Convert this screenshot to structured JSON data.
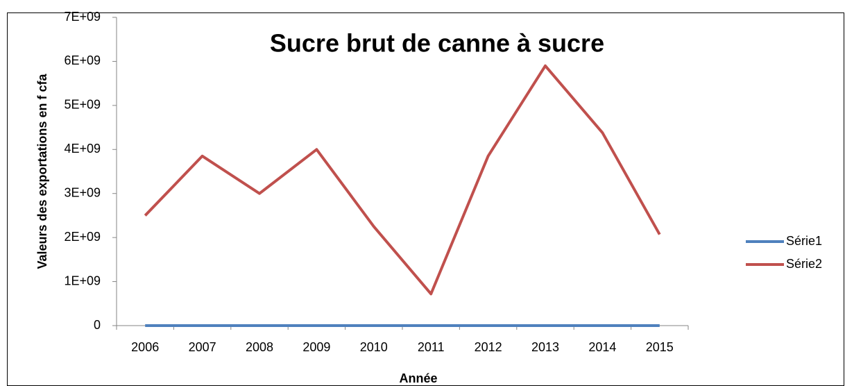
{
  "chart_data": {
    "type": "line",
    "title": "Sucre brut de canne à sucre",
    "x_label": "Année",
    "y_label": "Valeurs des exportations en f cfa",
    "categories": [
      "2006",
      "2007",
      "2008",
      "2009",
      "2010",
      "2011",
      "2012",
      "2013",
      "2014",
      "2015"
    ],
    "series": [
      {
        "name": "Série1",
        "color": "#4f81bd",
        "values": [
          0,
          0,
          0,
          0,
          0,
          0,
          0,
          0,
          0,
          0
        ]
      },
      {
        "name": "Série2",
        "color": "#c0504d",
        "values": [
          2500000000,
          3850000000,
          3000000000,
          4000000000,
          2250000000,
          720000000,
          3850000000,
          5900000000,
          4380000000,
          2070000000
        ]
      }
    ],
    "ylim": [
      0,
      7000000000
    ],
    "yticks": [
      0,
      {
        "value": 1000000000,
        "label": "1E+09"
      },
      {
        "value": 2000000000,
        "label": "2E+09"
      },
      {
        "value": 3000000000,
        "label": "3E+09"
      },
      {
        "value": 4000000000,
        "label": "4E+09"
      },
      {
        "value": 5000000000,
        "label": "5E+09"
      },
      {
        "value": 6000000000,
        "label": "6E+09"
      },
      {
        "value": 7000000000,
        "label": "7E+09"
      }
    ],
    "legend": "right"
  }
}
